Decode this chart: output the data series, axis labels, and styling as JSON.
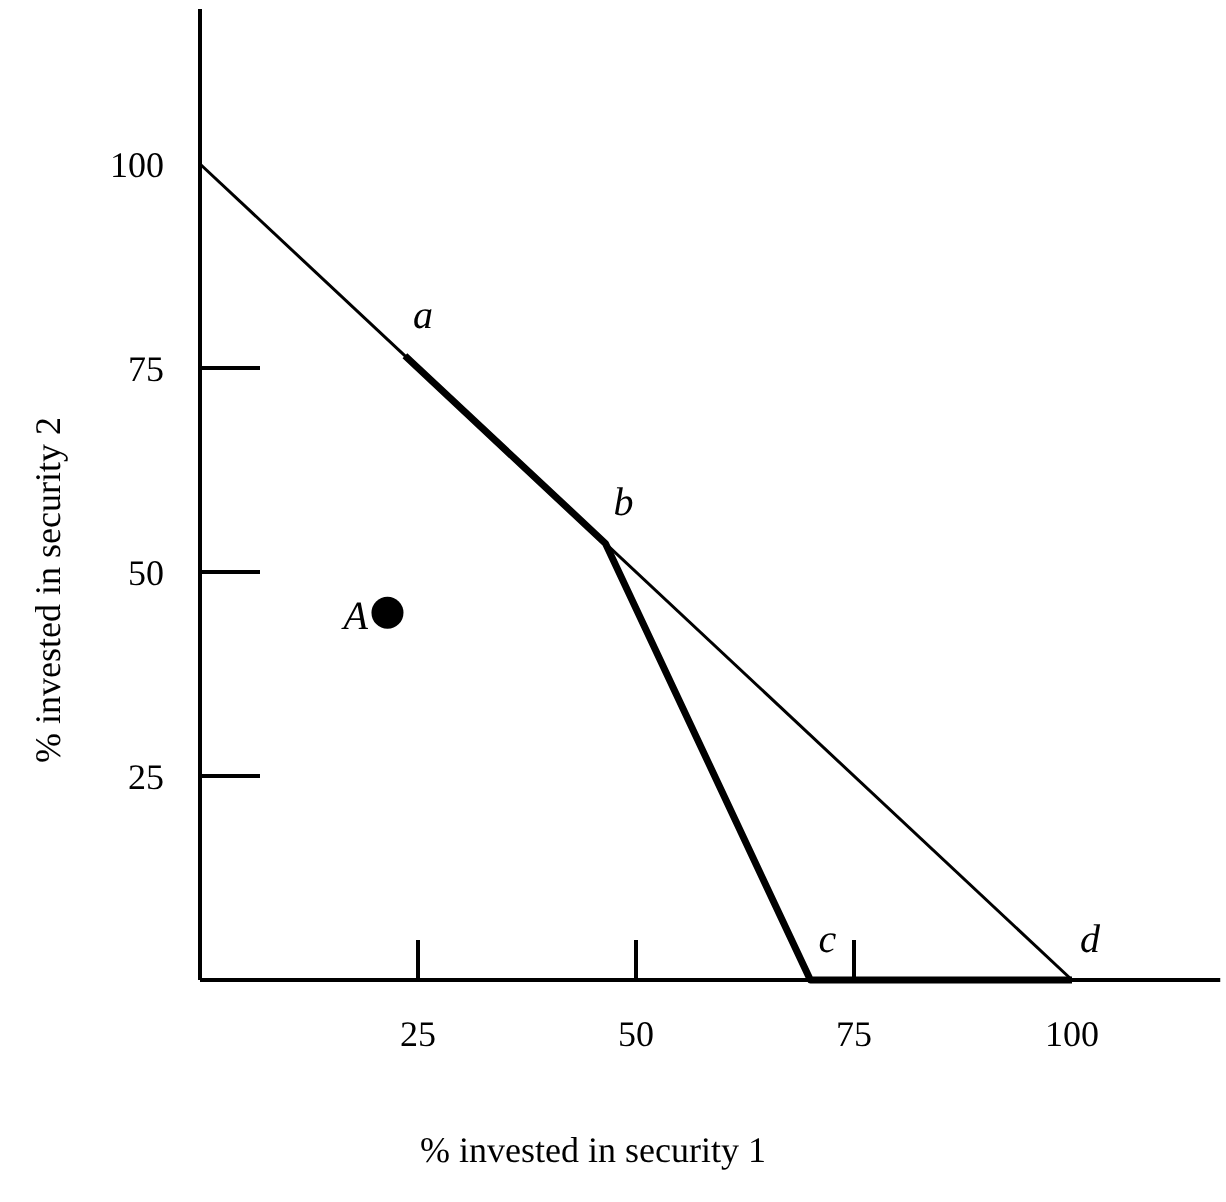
{
  "chart_data": {
    "type": "line",
    "xlabel": "% invested in security 1",
    "ylabel": "% invested in security 2",
    "xlim": [
      0,
      117
    ],
    "ylim": [
      0,
      119
    ],
    "xticks": [
      25,
      50,
      75,
      100
    ],
    "yticks": [
      25,
      50,
      75,
      100
    ],
    "grid": false,
    "series": [
      {
        "type": "line",
        "color": "#000000",
        "x": [
          0,
          100
        ],
        "values": [
          100,
          0
        ]
      },
      {
        "type": "line",
        "color": "#000000",
        "x": [
          23.5,
          46.5,
          70,
          100
        ],
        "values": [
          76.5,
          53.5,
          0,
          0
        ]
      },
      {
        "type": "scatter",
        "color": "#000000",
        "x": [
          21.5
        ],
        "values": [
          45
        ]
      }
    ],
    "annotations": [
      {
        "text": "a",
        "x": 23.5,
        "y": 76.5
      },
      {
        "text": "b",
        "x": 46.5,
        "y": 53.5
      },
      {
        "text": "c",
        "x": 70,
        "y": 0
      },
      {
        "text": "d",
        "x": 100,
        "y": 0
      },
      {
        "text": "A",
        "x": 21.5,
        "y": 45
      }
    ]
  }
}
